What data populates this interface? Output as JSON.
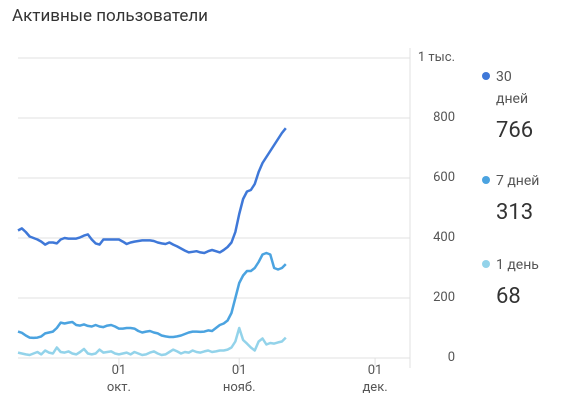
{
  "chart_data": {
    "type": "line",
    "title": "Активные пользователи",
    "x": [
      0,
      1,
      2,
      3,
      4,
      5,
      6,
      7,
      8,
      9,
      10,
      11,
      12,
      13,
      14,
      15,
      16,
      17,
      18,
      19,
      20,
      21,
      22,
      23,
      24,
      25,
      26,
      27,
      28,
      29,
      30,
      31,
      32,
      33,
      34,
      35,
      36,
      37,
      38,
      39,
      40,
      41,
      42,
      43,
      44,
      45,
      46,
      47,
      48,
      49,
      50,
      51,
      52,
      53,
      54,
      55,
      56,
      57,
      58,
      59,
      60,
      61,
      62,
      63,
      64,
      65,
      66,
      67,
      68,
      69
    ],
    "xlim": [
      0,
      101
    ],
    "xticks": [
      {
        "value": 26,
        "label": "01 окт."
      },
      {
        "value": 57,
        "label": "01 нояб."
      },
      {
        "value": 92,
        "label": "01 дек."
      }
    ],
    "ylim": [
      0,
      1000
    ],
    "yticks": [
      0,
      200,
      400,
      600,
      800,
      {
        "value": 1000,
        "label": "1 тыс."
      }
    ],
    "grid": true,
    "series": [
      {
        "name": "30 дней",
        "color": "#3f78d8",
        "legend_value": 766,
        "values": [
          425,
          432,
          420,
          405,
          400,
          395,
          388,
          378,
          385,
          385,
          382,
          395,
          400,
          398,
          398,
          398,
          402,
          408,
          412,
          395,
          382,
          378,
          395,
          395,
          395,
          395,
          395,
          388,
          380,
          385,
          388,
          390,
          392,
          392,
          392,
          390,
          385,
          382,
          380,
          385,
          378,
          372,
          365,
          358,
          352,
          354,
          356,
          352,
          350,
          356,
          360,
          356,
          352,
          360,
          370,
          385,
          420,
          480,
          530,
          555,
          560,
          580,
          620,
          650,
          670,
          690,
          710,
          730,
          750,
          766
        ]
      },
      {
        "name": "7 дней",
        "color": "#4ba3e0",
        "legend_value": 313,
        "values": [
          88,
          84,
          75,
          68,
          67,
          68,
          72,
          82,
          85,
          88,
          100,
          118,
          115,
          118,
          120,
          110,
          108,
          112,
          107,
          105,
          110,
          105,
          103,
          108,
          110,
          105,
          98,
          98,
          100,
          100,
          98,
          90,
          85,
          88,
          90,
          85,
          82,
          75,
          72,
          70,
          70,
          72,
          75,
          80,
          85,
          88,
          88,
          87,
          88,
          92,
          90,
          100,
          110,
          115,
          125,
          150,
          200,
          250,
          275,
          290,
          290,
          300,
          320,
          345,
          350,
          345,
          300,
          295,
          300,
          313
        ]
      },
      {
        "name": "1 день",
        "color": "#93d3ea",
        "legend_value": 68,
        "values": [
          18,
          15,
          12,
          10,
          15,
          20,
          12,
          25,
          18,
          15,
          35,
          20,
          18,
          22,
          15,
          12,
          20,
          30,
          15,
          12,
          15,
          28,
          18,
          20,
          22,
          15,
          12,
          15,
          18,
          12,
          20,
          15,
          10,
          12,
          18,
          22,
          15,
          10,
          12,
          20,
          28,
          22,
          15,
          20,
          18,
          25,
          20,
          18,
          22,
          25,
          20,
          22,
          25,
          25,
          28,
          35,
          55,
          100,
          60,
          48,
          35,
          25,
          55,
          65,
          45,
          50,
          48,
          52,
          55,
          68
        ]
      }
    ]
  }
}
